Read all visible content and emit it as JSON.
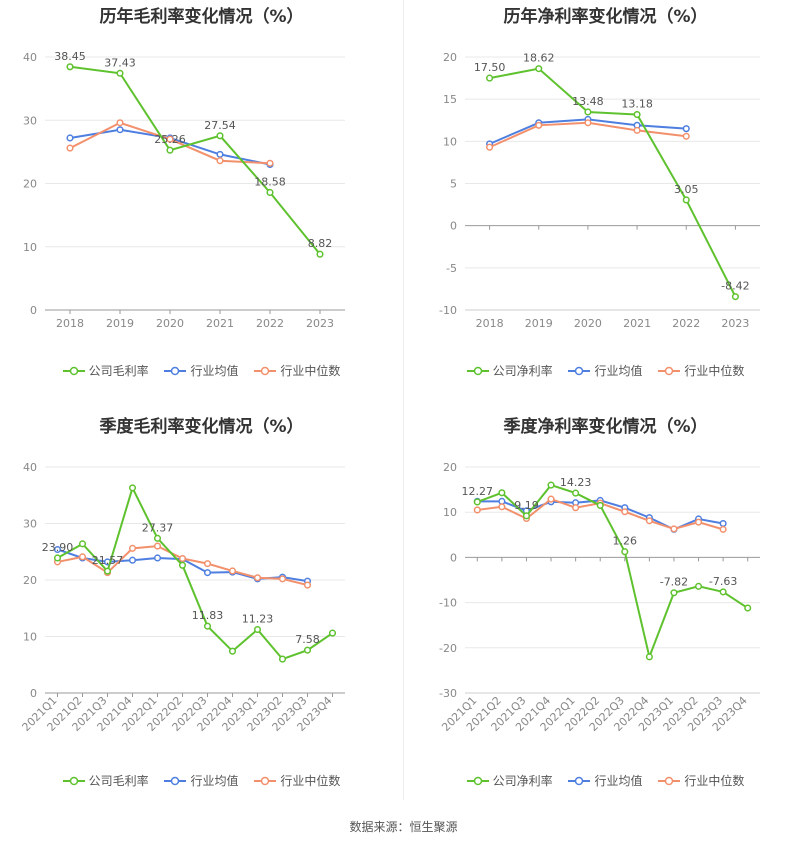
{
  "source": "数据来源：恒生聚源",
  "colors": {
    "company": "#5ec22e",
    "avg": "#4e7fe0",
    "median": "#f3906c"
  },
  "chart_data": [
    {
      "type": "line",
      "title": "历年毛利率变化情况（%）",
      "x": [
        "2018",
        "2019",
        "2020",
        "2021",
        "2022",
        "2023"
      ],
      "ylim": [
        0,
        40
      ],
      "yticks": [
        0,
        10,
        20,
        30,
        40
      ],
      "legend": [
        "公司毛利率",
        "行业均值",
        "行业中位数"
      ],
      "series": [
        {
          "name": "公司毛利率",
          "values": [
            38.45,
            37.43,
            25.26,
            27.54,
            18.58,
            8.82
          ],
          "labels": [
            "38.45",
            "37.43",
            "25.26",
            "27.54",
            "18.58",
            "8.82"
          ]
        },
        {
          "name": "行业均值",
          "values": [
            27.2,
            28.5,
            27.2,
            24.6,
            23.0,
            null
          ]
        },
        {
          "name": "行业中位数",
          "values": [
            25.6,
            29.6,
            27.0,
            23.6,
            23.2,
            null
          ]
        }
      ]
    },
    {
      "type": "line",
      "title": "历年净利率变化情况（%）",
      "x": [
        "2018",
        "2019",
        "2020",
        "2021",
        "2022",
        "2023"
      ],
      "ylim": [
        -10,
        20
      ],
      "yticks": [
        -10,
        -5,
        0,
        5,
        10,
        15,
        20
      ],
      "legend": [
        "公司净利率",
        "行业均值",
        "行业中位数"
      ],
      "series": [
        {
          "name": "公司净利率",
          "values": [
            17.5,
            18.62,
            13.48,
            13.18,
            3.05,
            -8.42
          ],
          "labels": [
            "17.50",
            "18.62",
            "13.48",
            "13.18",
            "3.05",
            "-8.42"
          ]
        },
        {
          "name": "行业均值",
          "values": [
            9.7,
            12.2,
            12.6,
            11.9,
            11.5,
            null
          ]
        },
        {
          "name": "行业中位数",
          "values": [
            9.3,
            11.9,
            12.2,
            11.3,
            10.6,
            null
          ]
        }
      ]
    },
    {
      "type": "line",
      "title": "季度毛利率变化情况（%）",
      "x": [
        "2021Q1",
        "2021Q2",
        "2021Q3",
        "2021Q4",
        "2022Q1",
        "2022Q2",
        "2022Q3",
        "2022Q4",
        "2023Q1",
        "2023Q2",
        "2023Q3",
        "2023Q4"
      ],
      "ylim": [
        0,
        40
      ],
      "yticks": [
        0,
        10,
        20,
        30,
        40
      ],
      "legend": [
        "公司毛利率",
        "行业均值",
        "行业中位数"
      ],
      "series": [
        {
          "name": "公司毛利率",
          "values": [
            23.9,
            26.4,
            21.57,
            36.3,
            27.37,
            22.6,
            11.83,
            7.4,
            11.23,
            6.0,
            7.58,
            10.6
          ],
          "labels": [
            "23.90",
            "",
            "21.57",
            "",
            "27.37",
            "",
            "11.83",
            "",
            "11.23",
            "",
            "7.58",
            ""
          ]
        },
        {
          "name": "行业均值",
          "values": [
            25.4,
            23.9,
            23.2,
            23.5,
            23.9,
            23.7,
            21.3,
            21.4,
            20.2,
            20.5,
            19.8,
            null
          ]
        },
        {
          "name": "行业中位数",
          "values": [
            23.2,
            24.1,
            21.3,
            25.6,
            26.0,
            23.8,
            22.9,
            21.6,
            20.4,
            20.2,
            19.1,
            null
          ]
        }
      ]
    },
    {
      "type": "line",
      "title": "季度净利率变化情况（%）",
      "x": [
        "2021Q1",
        "2021Q2",
        "2021Q3",
        "2021Q4",
        "2022Q1",
        "2022Q2",
        "2022Q3",
        "2022Q4",
        "2023Q1",
        "2023Q2",
        "2023Q3",
        "2023Q4"
      ],
      "ylim": [
        -30,
        20
      ],
      "yticks": [
        -30,
        -20,
        -10,
        0,
        10,
        20
      ],
      "legend": [
        "公司净利率",
        "行业均值",
        "行业中位数"
      ],
      "series": [
        {
          "name": "公司净利率",
          "values": [
            12.27,
            14.3,
            9.19,
            16.0,
            14.23,
            11.5,
            1.26,
            -22.0,
            -7.82,
            -6.4,
            -7.63,
            -11.2
          ],
          "labels": [
            "12.27",
            "",
            "9.19",
            "",
            "14.23",
            "",
            "1.26",
            "",
            "-7.82",
            "",
            "-7.63",
            ""
          ]
        },
        {
          "name": "行业均值",
          "values": [
            12.4,
            12.4,
            10.3,
            12.3,
            12.1,
            12.6,
            11.0,
            8.8,
            6.2,
            8.5,
            7.5,
            null
          ]
        },
        {
          "name": "行业中位数",
          "values": [
            10.5,
            11.2,
            8.6,
            12.9,
            11.0,
            12.0,
            10.1,
            8.1,
            6.3,
            7.8,
            6.2,
            null
          ]
        }
      ]
    }
  ]
}
